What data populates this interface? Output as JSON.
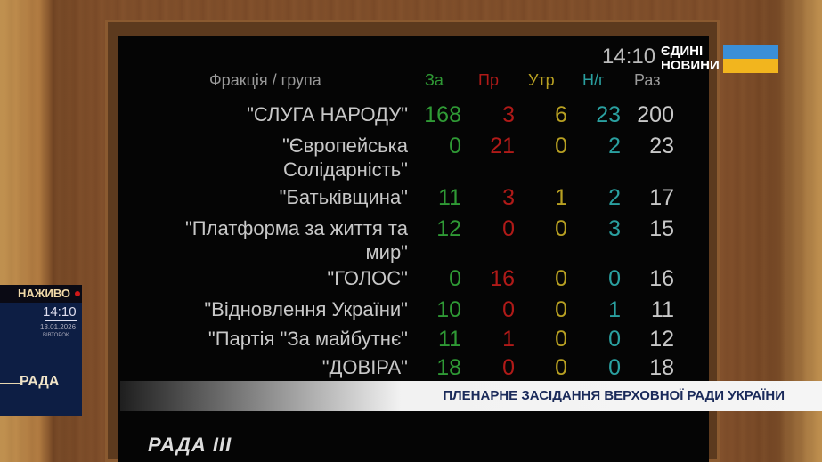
{
  "overlay": {
    "clock": "14:10",
    "channel": "ЄДИНІ НОВИНИ",
    "channel_line1": "ЄДИНІ",
    "channel_line2": "НОВИНИ",
    "flag_colors": [
      "#3a8fd8",
      "#f2b51e"
    ],
    "live_label": "НАЖИВО",
    "live_dot_color": "#d01818",
    "time": "14:10",
    "date": "13.01.2026",
    "weekday": "ВІВТОРОК",
    "channel_name": "РАДА",
    "banner": "ПЛЕНАРНЕ ЗАСІДАННЯ ВЕРХОВНОЇ РАДИ УКРАЇНИ",
    "logo": "РАДА III"
  },
  "board": {
    "headers": {
      "faction": "Фракція / група",
      "for": "За",
      "against": "Пр",
      "abstain": "Утр",
      "not_voting": "Н/г",
      "total": "Раз"
    },
    "rows": [
      {
        "name": "\"СЛУГА НАРОДУ\"",
        "for": "168",
        "against": "3",
        "abstain": "6",
        "not_voting": "23",
        "total": "200"
      },
      {
        "name": "\"Європейська",
        "name2": "Солідарність\"",
        "for": "0",
        "against": "21",
        "abstain": "0",
        "not_voting": "2",
        "total": "23"
      },
      {
        "name": "\"Батьківщина\"",
        "for": "11",
        "against": "3",
        "abstain": "1",
        "not_voting": "2",
        "total": "17"
      },
      {
        "name": "\"Платформа за життя та",
        "name2": "мир\"",
        "for": "12",
        "against": "0",
        "abstain": "0",
        "not_voting": "3",
        "total": "15"
      },
      {
        "name": "\"ГОЛОС\"",
        "for": "0",
        "against": "16",
        "abstain": "0",
        "not_voting": "0",
        "total": "16"
      },
      {
        "name": "\"Відновлення України\"",
        "for": "10",
        "against": "0",
        "abstain": "0",
        "not_voting": "1",
        "total": "11"
      },
      {
        "name": "\"Партія \"За  майбутнє\"",
        "for": "11",
        "against": "1",
        "abstain": "0",
        "not_voting": "0",
        "total": "12"
      },
      {
        "name": "\"ДОВІРА\"",
        "for": "18",
        "against": "0",
        "abstain": "0",
        "not_voting": "0",
        "total": "18"
      }
    ]
  }
}
